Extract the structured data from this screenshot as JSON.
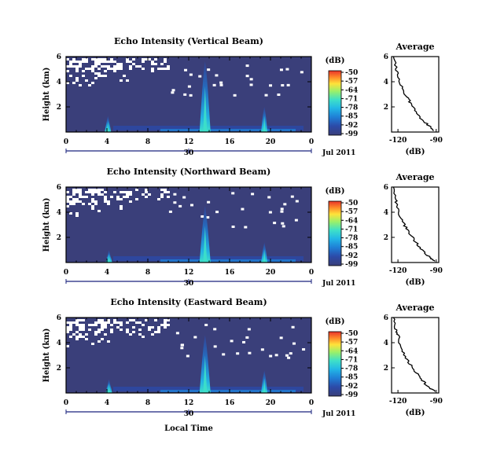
{
  "figure": {
    "xlabel": "Local Time",
    "date_label": "Jul 2011",
    "colorbar_unit": "(dB)",
    "avg_title": "Average",
    "avg_xlabel": "(dB)"
  },
  "colors": {
    "background": "#3a3f7a",
    "clear_pixel": "#ffffff",
    "colormap": [
      "#3a3f7a",
      "#2c4aa8",
      "#1f7fd6",
      "#22b8e6",
      "#3ee0c8",
      "#9af06a",
      "#ffe23a",
      "#ff8a2a",
      "#e8332a"
    ],
    "axis_line": "#1a237e"
  },
  "chart_data": [
    {
      "type": "heatmap",
      "title": "Echo Intensity (Vertical Beam)",
      "ylabel": "Height (km)",
      "x_ticks": [
        "0",
        "4",
        "8",
        "12",
        "16",
        "20",
        "0"
      ],
      "x_range": [
        0,
        24
      ],
      "date_tick": "30",
      "y_ticks": [
        "6",
        "4",
        "2"
      ],
      "y_range": [
        0,
        6
      ],
      "colorbar": {
        "ticks": [
          "-50",
          "-57",
          "-64",
          "-71",
          "-78",
          "-85",
          "-92",
          "-99"
        ],
        "range": [
          -99,
          -50
        ]
      },
      "features": [
        {
          "time_h": 4.1,
          "top_km": 1.3,
          "peak_db": -85
        },
        {
          "time_h": 13.6,
          "top_km": 5.6,
          "peak_db": -71
        },
        {
          "time_h": 19.4,
          "top_km": 2.0,
          "peak_db": -78
        }
      ],
      "average_profile": {
        "x_ticks": [
          "-120",
          "-90"
        ],
        "x_range": [
          -125,
          -88
        ],
        "y_ticks": [
          "6",
          "4",
          "2"
        ],
        "y_range": [
          0,
          6
        ],
        "points": [
          [
            -123,
            6.0
          ],
          [
            -121,
            5.0
          ],
          [
            -120,
            4.5
          ],
          [
            -117,
            3.6
          ],
          [
            -114,
            2.9
          ],
          [
            -110,
            2.3
          ],
          [
            -106,
            1.6
          ],
          [
            -101,
            1.0
          ],
          [
            -96,
            0.5
          ],
          [
            -92,
            0.1
          ]
        ]
      }
    },
    {
      "type": "heatmap",
      "title": "Echo Intensity (Northward Beam)",
      "ylabel": "Height (km)",
      "x_ticks": [
        "0",
        "4",
        "8",
        "12",
        "16",
        "20",
        "0"
      ],
      "x_range": [
        0,
        24
      ],
      "date_tick": "30",
      "y_ticks": [
        "6",
        "4",
        "2"
      ],
      "y_range": [
        0,
        6
      ],
      "colorbar": {
        "ticks": [
          "-50",
          "-57",
          "-64",
          "-71",
          "-78",
          "-85",
          "-92",
          "-99"
        ],
        "range": [
          -99,
          -50
        ]
      },
      "features": [
        {
          "time_h": 4.2,
          "top_km": 1.0,
          "peak_db": -92
        },
        {
          "time_h": 13.6,
          "top_km": 4.5,
          "peak_db": -71
        },
        {
          "time_h": 19.4,
          "top_km": 1.6,
          "peak_db": -78
        }
      ],
      "average_profile": {
        "x_ticks": [
          "-120",
          "-90"
        ],
        "x_range": [
          -125,
          -88
        ],
        "y_ticks": [
          "6",
          "4",
          "2"
        ],
        "y_range": [
          0,
          6
        ],
        "points": [
          [
            -123,
            6.0
          ],
          [
            -122,
            5.0
          ],
          [
            -120,
            4.4
          ],
          [
            -118,
            3.5
          ],
          [
            -114,
            2.8
          ],
          [
            -110,
            2.2
          ],
          [
            -105,
            1.5
          ],
          [
            -100,
            0.9
          ],
          [
            -95,
            0.4
          ],
          [
            -91,
            0.1
          ]
        ]
      }
    },
    {
      "type": "heatmap",
      "title": "Echo Intensity (Eastward Beam)",
      "ylabel": "Height (km)",
      "x_ticks": [
        "0",
        "4",
        "8",
        "12",
        "16",
        "20",
        "0"
      ],
      "x_range": [
        0,
        24
      ],
      "date_tick": "30",
      "y_ticks": [
        "6",
        "4",
        "2"
      ],
      "y_range": [
        0,
        6
      ],
      "colorbar": {
        "ticks": [
          "-50",
          "-57",
          "-64",
          "-71",
          "-78",
          "-85",
          "-92",
          "-99"
        ],
        "range": [
          -99,
          -50
        ]
      },
      "features": [
        {
          "time_h": 4.2,
          "top_km": 1.1,
          "peak_db": -92
        },
        {
          "time_h": 13.6,
          "top_km": 4.6,
          "peak_db": -71
        },
        {
          "time_h": 19.4,
          "top_km": 1.8,
          "peak_db": -78
        }
      ],
      "average_profile": {
        "x_ticks": [
          "-120",
          "-90"
        ],
        "x_range": [
          -125,
          -88
        ],
        "y_ticks": [
          "6",
          "4",
          "2"
        ],
        "y_range": [
          0,
          6
        ],
        "points": [
          [
            -123,
            6.0
          ],
          [
            -122,
            5.1
          ],
          [
            -120,
            4.6
          ],
          [
            -118,
            3.7
          ],
          [
            -114,
            2.9
          ],
          [
            -110,
            2.2
          ],
          [
            -105,
            1.5
          ],
          [
            -100,
            0.9
          ],
          [
            -95,
            0.4
          ],
          [
            -91,
            0.1
          ]
        ]
      }
    }
  ]
}
